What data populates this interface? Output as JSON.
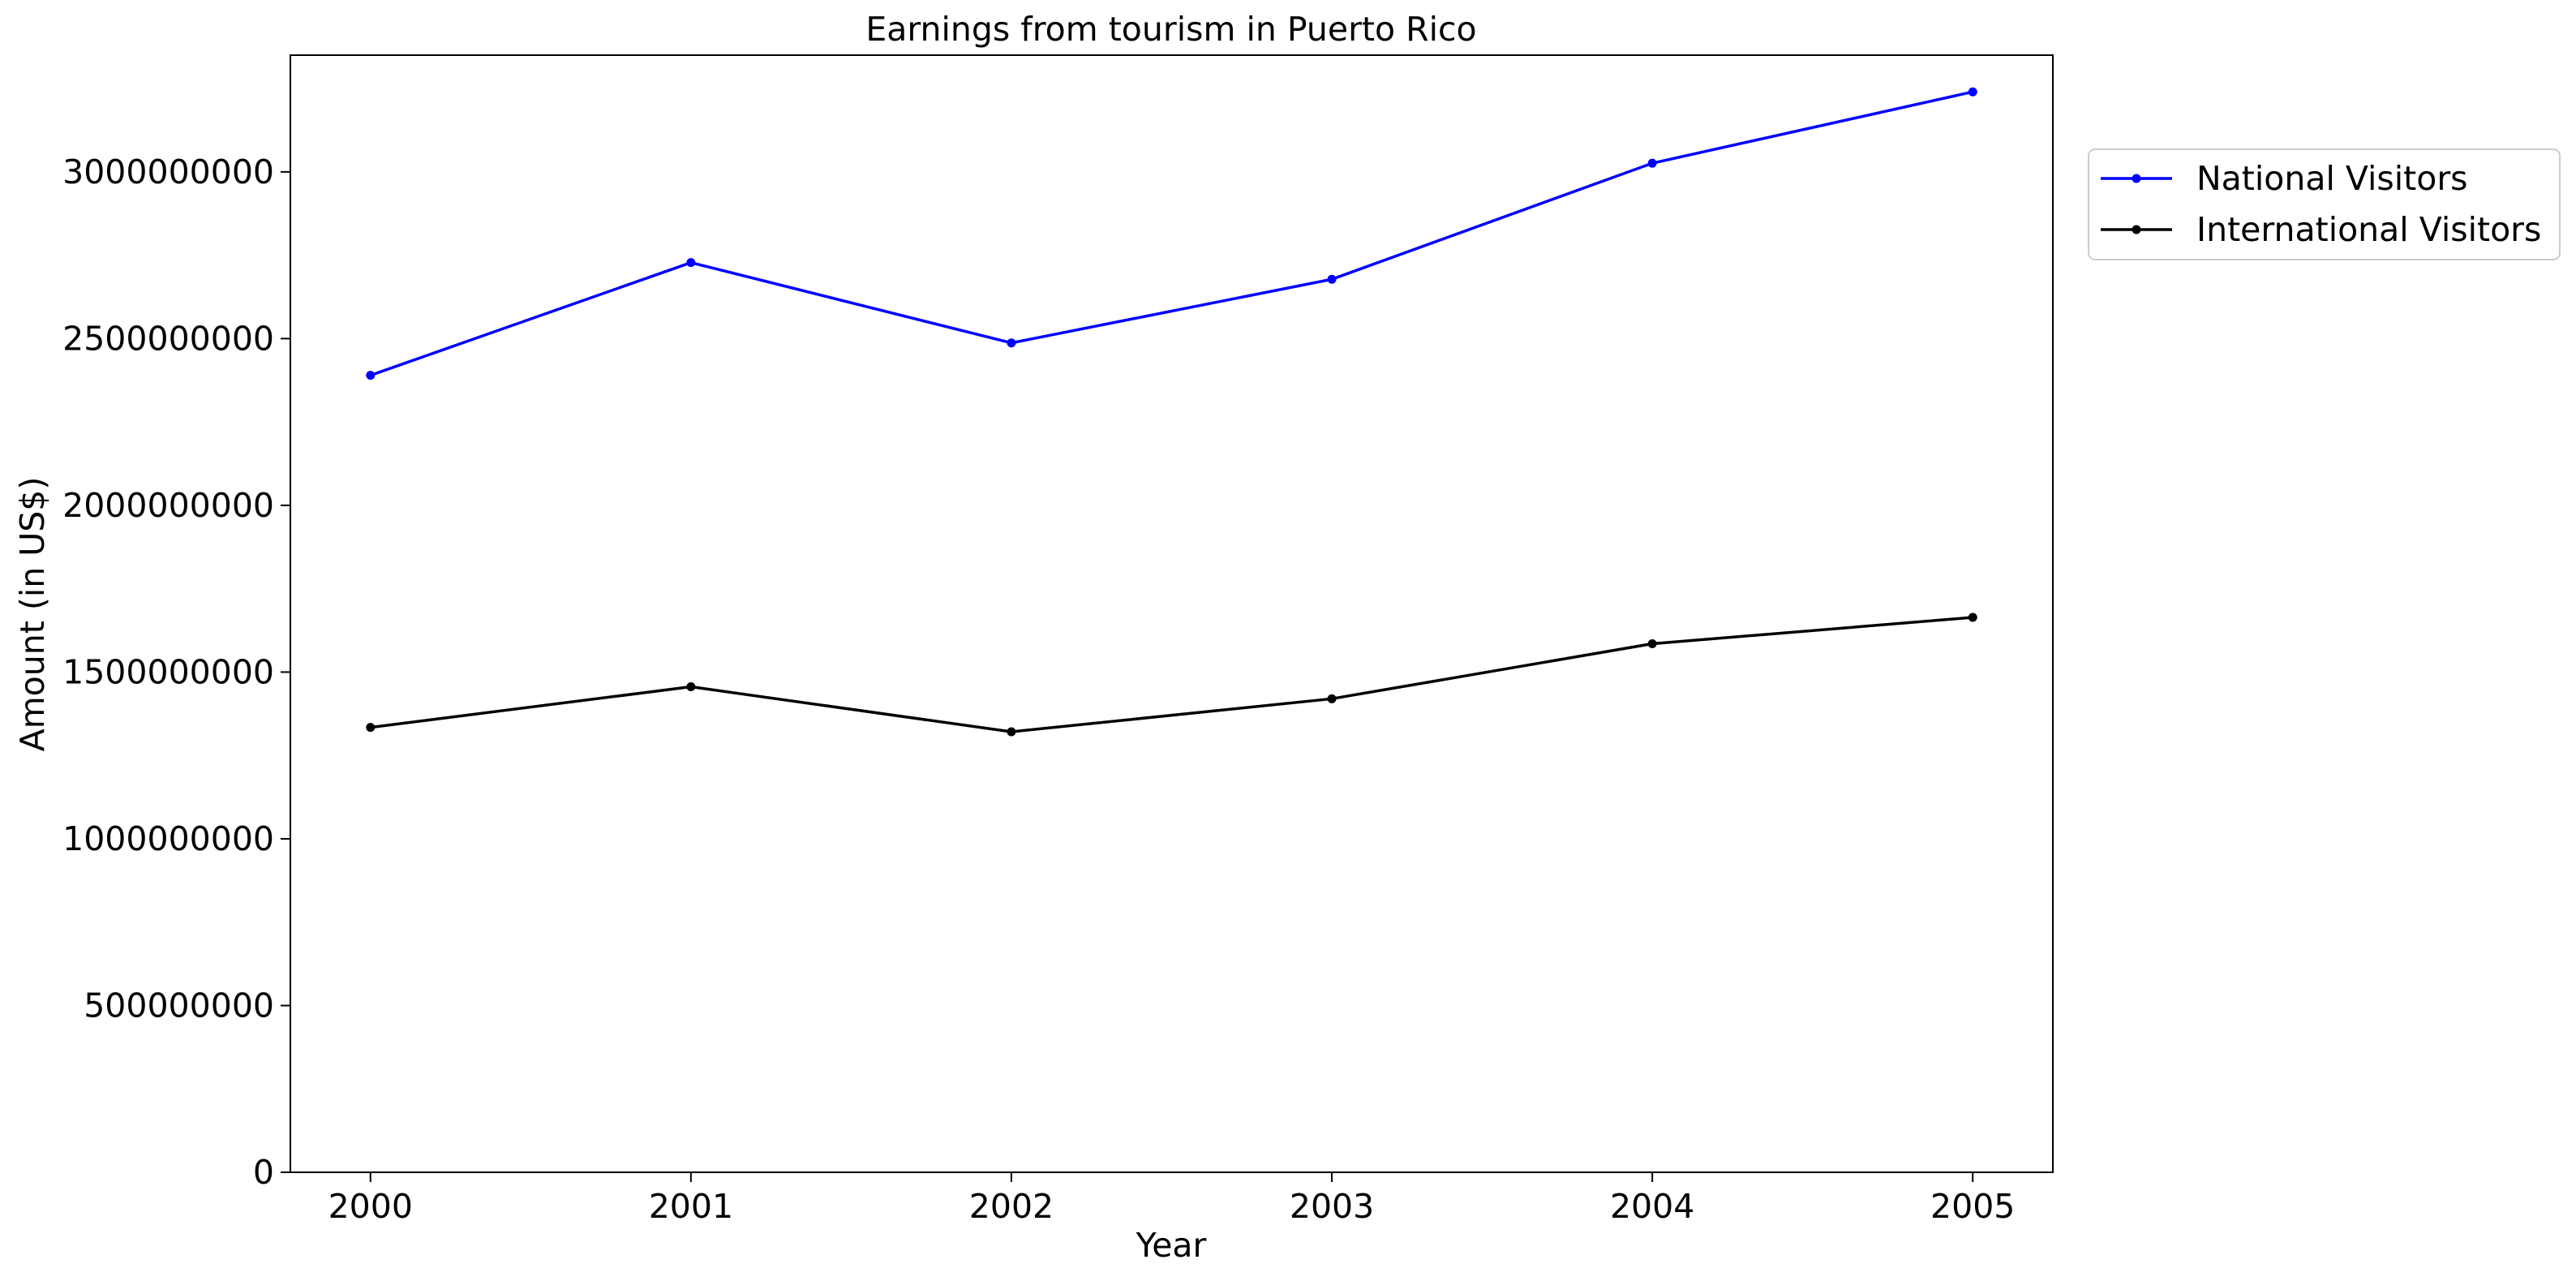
{
  "chart_data": {
    "type": "line",
    "title": "Earnings from tourism in Puerto Rico",
    "xlabel": "Year",
    "ylabel": "Amount (in US$)",
    "categories": [
      "2000",
      "2001",
      "2002",
      "2003",
      "2004",
      "2005"
    ],
    "xlim": [
      2000,
      2005
    ],
    "ylim": [
      0,
      3350000000
    ],
    "yticks": [
      0,
      500000000,
      1000000000,
      1500000000,
      2000000000,
      2500000000,
      3000000000
    ],
    "ytick_labels": [
      "0",
      "500000000",
      "1000000000",
      "1500000000",
      "2000000000",
      "2500000000",
      "3000000000"
    ],
    "grid": false,
    "legend_position": "outside-top-right",
    "series": [
      {
        "name": "National Visitors",
        "color": "#0000ff",
        "values": [
          2390000000,
          2728000000,
          2487000000,
          2678000000,
          3026000000,
          3240000000
        ]
      },
      {
        "name": "International Visitors",
        "color": "#000000",
        "values": [
          1334000000,
          1456000000,
          1321000000,
          1420000000,
          1585000000,
          1664000000
        ]
      }
    ]
  }
}
